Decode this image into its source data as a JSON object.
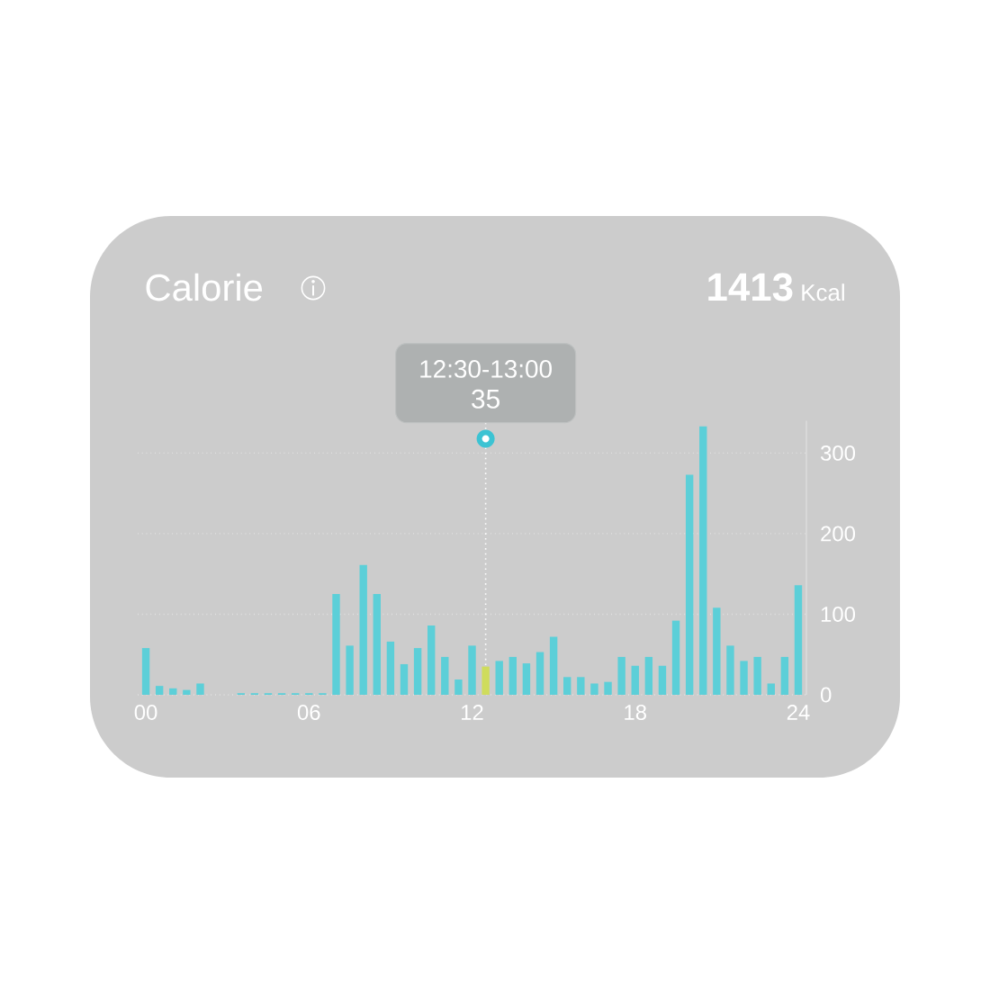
{
  "chart_data": {
    "type": "bar",
    "title": "Calorie",
    "subtitle": "**1413** Kcal",
    "annotations": [
      "12:30-13:00",
      {
        "text": "35",
        "x": 12.5,
        "y": 35
      }
    ],
    "x": [
      0,
      0.5,
      1,
      1.5,
      2,
      2.5,
      3,
      3.5,
      4,
      4.5,
      5,
      5.5,
      6,
      6.5,
      7,
      7.5,
      8,
      8.5,
      9,
      9.5,
      10,
      10.5,
      11,
      11.5,
      12,
      12.5,
      13,
      13.5,
      14,
      14.5,
      15,
      15.5,
      16,
      16.5,
      17,
      17.5,
      18,
      18.5,
      19,
      19.5,
      20,
      20.5,
      21,
      21.5,
      22,
      22.5,
      23,
      23.5,
      24
    ],
    "values": [
      58,
      11,
      8,
      6,
      14,
      null,
      null,
      2,
      2,
      2,
      2,
      2,
      2,
      2,
      125,
      61,
      161,
      125,
      66,
      38,
      58,
      86,
      47,
      19,
      61,
      35,
      42,
      47,
      39,
      53,
      72,
      22,
      22,
      14,
      16,
      47,
      36,
      47,
      36,
      92,
      273,
      333,
      108,
      61,
      42,
      47,
      14,
      47,
      136
    ],
    "colors": [
      "#5ccfd8",
      "#5ccfd8",
      "#5ccfd8",
      "#5ccfd8",
      "#5ccfd8",
      "#5ccfd8",
      "#5ccfd8",
      "#5ccfd8",
      "#5ccfd8",
      "#5ccfd8",
      "#5ccfd8",
      "#5ccfd8",
      "#5ccfd8",
      "#5ccfd8",
      "#5ccfd8",
      "#5ccfd8",
      "#5ccfd8",
      "#5ccfd8",
      "#5ccfd8",
      "#5ccfd8",
      "#5ccfd8",
      "#5ccfd8",
      "#5ccfd8",
      "#5ccfd8",
      "#5ccfd8",
      "#cfdc5c",
      "#5ccfd8",
      "#5ccfd8",
      "#5ccfd8",
      "#5ccfd8",
      "#5ccfd8",
      "#5ccfd8",
      "#5ccfd8",
      "#5ccfd8",
      "#5ccfd8",
      "#5ccfd8",
      "#5ccfd8",
      "#5ccfd8",
      "#5ccfd8",
      "#5ccfd8",
      "#5ccfd8",
      "#5ccfd8",
      "#5ccfd8",
      "#5ccfd8",
      "#5ccfd8",
      "#5ccfd8",
      "#5ccfd8",
      "#5ccfd8",
      "#5ccfd8"
    ],
    "xlim": [
      -0.3,
      24.3
    ],
    "xticks": [
      {
        "value": 0,
        "label": "00"
      },
      {
        "value": 6,
        "label": "06"
      },
      12,
      18,
      24
    ],
    "ylim": [
      0,
      340
    ],
    "yticks": [
      0,
      100,
      200,
      300
    ],
    "grid": "y"
  }
}
